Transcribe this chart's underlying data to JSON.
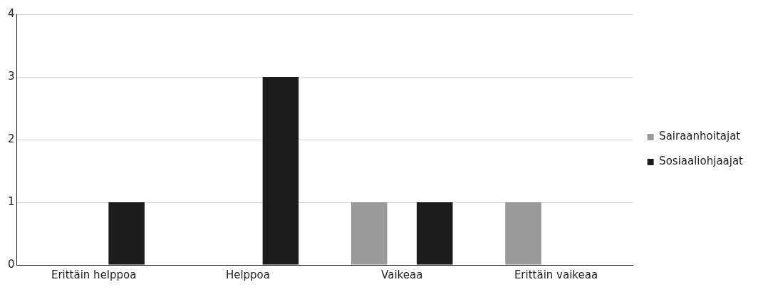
{
  "chart_data": {
    "type": "bar",
    "categories": [
      "Erittäin helppoa",
      "Helppoa",
      "Vaikeaa",
      "Erittäin vaikeaa"
    ],
    "series": [
      {
        "name": "Sairaanhoitajat",
        "color": "#9a9a9a",
        "values": [
          0,
          0,
          1,
          1
        ]
      },
      {
        "name": "Sosiaaliohjaajat",
        "color": "#1c1c1c",
        "values": [
          1,
          3,
          1,
          0
        ]
      }
    ],
    "ylim": [
      0,
      4
    ],
    "yticks": [
      0,
      1,
      2,
      3,
      4
    ],
    "grid": "y",
    "legend": "right"
  }
}
